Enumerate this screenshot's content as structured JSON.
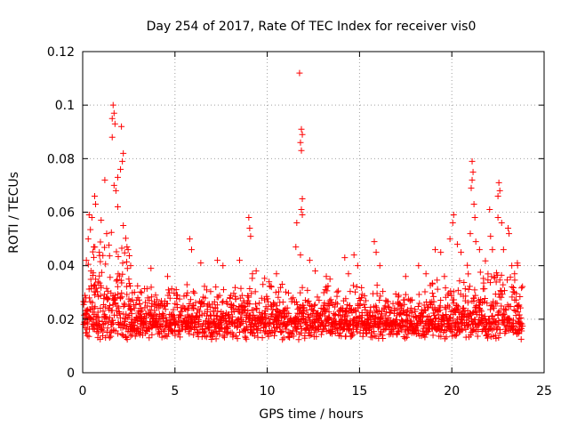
{
  "chart_data": {
    "type": "scatter",
    "title": "Day 254 of 2017, Rate Of TEC Index for receiver vis0",
    "xlabel": "GPS time / hours",
    "ylabel": "ROTI / TECUs",
    "xlim": [
      0,
      25
    ],
    "ylim": [
      0,
      0.12
    ],
    "xticks": [
      0,
      5,
      10,
      15,
      20,
      25
    ],
    "xtick_labels": [
      "0",
      "5",
      "10",
      "15",
      "20",
      "25"
    ],
    "yticks": [
      0,
      0.02,
      0.04,
      0.06,
      0.08,
      0.1,
      0.12
    ],
    "ytick_labels": [
      "0",
      "0.02",
      "0.04",
      "0.06",
      "0.08",
      "0.1",
      "0.12"
    ],
    "grid": true,
    "marker": "+",
    "color": "#ff0000",
    "series": [
      {
        "name": "ROTI",
        "points": [
          [
            1.65,
            0.1
          ],
          [
            1.7,
            0.097
          ],
          [
            1.6,
            0.095
          ],
          [
            1.75,
            0.093
          ],
          [
            2.1,
            0.092
          ],
          [
            1.6,
            0.088
          ],
          [
            2.2,
            0.082
          ],
          [
            2.15,
            0.079
          ],
          [
            2.05,
            0.076
          ],
          [
            1.9,
            0.073
          ],
          [
            1.7,
            0.07
          ],
          [
            1.2,
            0.072
          ],
          [
            0.65,
            0.066
          ],
          [
            0.7,
            0.063
          ],
          [
            1.8,
            0.068
          ],
          [
            0.5,
            0.058
          ],
          [
            0.35,
            0.059
          ],
          [
            1.0,
            0.057
          ],
          [
            1.9,
            0.062
          ],
          [
            2.2,
            0.055
          ],
          [
            0.3,
            0.05
          ],
          [
            0.6,
            0.047
          ],
          [
            0.9,
            0.045
          ],
          [
            1.3,
            0.052
          ],
          [
            2.4,
            0.047
          ],
          [
            2.6,
            0.04
          ],
          [
            0.2,
            0.042
          ],
          [
            0.45,
            0.038
          ],
          [
            3.7,
            0.039
          ],
          [
            4.6,
            0.036
          ],
          [
            5.8,
            0.05
          ],
          [
            5.9,
            0.046
          ],
          [
            6.4,
            0.041
          ],
          [
            7.3,
            0.042
          ],
          [
            7.6,
            0.04
          ],
          [
            8.5,
            0.042
          ],
          [
            9.0,
            0.058
          ],
          [
            9.05,
            0.054
          ],
          [
            9.1,
            0.051
          ],
          [
            9.2,
            0.037
          ],
          [
            9.4,
            0.038
          ],
          [
            10.1,
            0.034
          ],
          [
            10.5,
            0.037
          ],
          [
            11.75,
            0.112
          ],
          [
            11.85,
            0.091
          ],
          [
            11.9,
            0.089
          ],
          [
            11.8,
            0.086
          ],
          [
            11.85,
            0.083
          ],
          [
            11.9,
            0.065
          ],
          [
            11.85,
            0.061
          ],
          [
            11.9,
            0.059
          ],
          [
            11.6,
            0.056
          ],
          [
            11.55,
            0.047
          ],
          [
            11.8,
            0.044
          ],
          [
            12.3,
            0.042
          ],
          [
            12.6,
            0.038
          ],
          [
            13.2,
            0.036
          ],
          [
            13.4,
            0.035
          ],
          [
            14.2,
            0.043
          ],
          [
            14.4,
            0.037
          ],
          [
            14.7,
            0.044
          ],
          [
            14.9,
            0.04
          ],
          [
            15.8,
            0.049
          ],
          [
            15.9,
            0.045
          ],
          [
            16.1,
            0.04
          ],
          [
            17.5,
            0.036
          ],
          [
            18.2,
            0.04
          ],
          [
            18.6,
            0.037
          ],
          [
            19.1,
            0.046
          ],
          [
            19.4,
            0.045
          ],
          [
            19.6,
            0.036
          ],
          [
            20.1,
            0.059
          ],
          [
            20.05,
            0.056
          ],
          [
            19.9,
            0.05
          ],
          [
            20.3,
            0.048
          ],
          [
            20.5,
            0.045
          ],
          [
            21.1,
            0.079
          ],
          [
            21.15,
            0.075
          ],
          [
            21.1,
            0.072
          ],
          [
            21.05,
            0.069
          ],
          [
            21.2,
            0.063
          ],
          [
            21.25,
            0.058
          ],
          [
            21.0,
            0.052
          ],
          [
            21.3,
            0.049
          ],
          [
            21.5,
            0.046
          ],
          [
            22.05,
            0.061
          ],
          [
            22.1,
            0.051
          ],
          [
            22.2,
            0.046
          ],
          [
            22.55,
            0.071
          ],
          [
            22.6,
            0.068
          ],
          [
            22.5,
            0.066
          ],
          [
            22.5,
            0.058
          ],
          [
            22.7,
            0.056
          ],
          [
            22.8,
            0.046
          ],
          [
            23.05,
            0.054
          ],
          [
            23.1,
            0.052
          ],
          [
            23.25,
            0.04
          ],
          [
            23.4,
            0.037
          ]
        ],
        "baseline_mean": 0.015,
        "baseline_spread": 0.012
      }
    ]
  }
}
